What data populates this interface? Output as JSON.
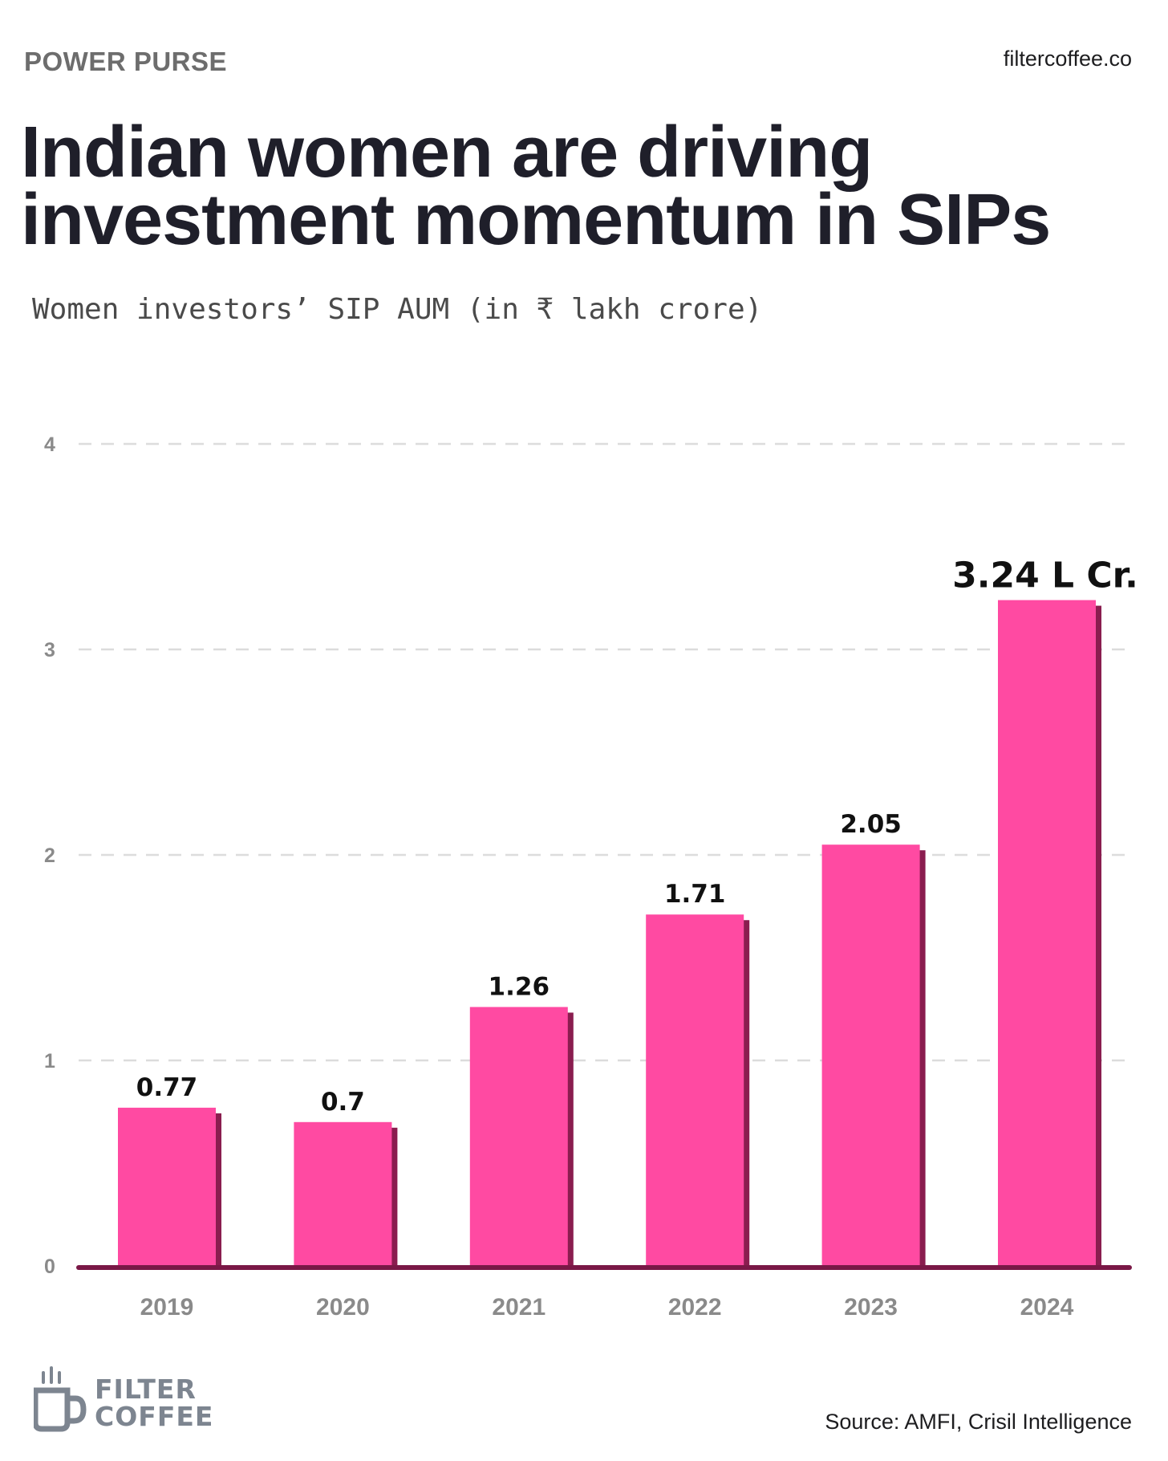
{
  "header": {
    "kicker": "POWER PURSE",
    "site": "filtercoffee.co"
  },
  "title": "Indian women are driving investment momentum in SIPs",
  "subtitle": "Women investors’ SIP AUM (in ₹ lakh crore)",
  "brand": {
    "logo_line1": "FILTER",
    "logo_line2": "COFFEE",
    "logo_icon": "coffee-mug-icon"
  },
  "source": "Source: AMFI, Crisil Intelligence",
  "colors": {
    "bar": "#ff4aa2",
    "bar_shadow": "#8a1d4f",
    "baseline": "#7a1846",
    "grid": "#dcdcdc"
  },
  "chart_data": {
    "type": "bar",
    "categories": [
      "2019",
      "2020",
      "2021",
      "2022",
      "2023",
      "2024"
    ],
    "values": [
      0.77,
      0.7,
      1.26,
      1.71,
      2.05,
      3.24
    ],
    "data_labels": [
      "0.77",
      "0.7",
      "1.26",
      "1.71",
      "2.05",
      "3.24 L Cr."
    ],
    "title": "Women investors’ SIP AUM (in ₹ lakh crore)",
    "xlabel": "",
    "ylabel": "",
    "ylim": [
      0,
      4
    ],
    "yticks": [
      0,
      1,
      2,
      3,
      4
    ],
    "grid": true
  }
}
